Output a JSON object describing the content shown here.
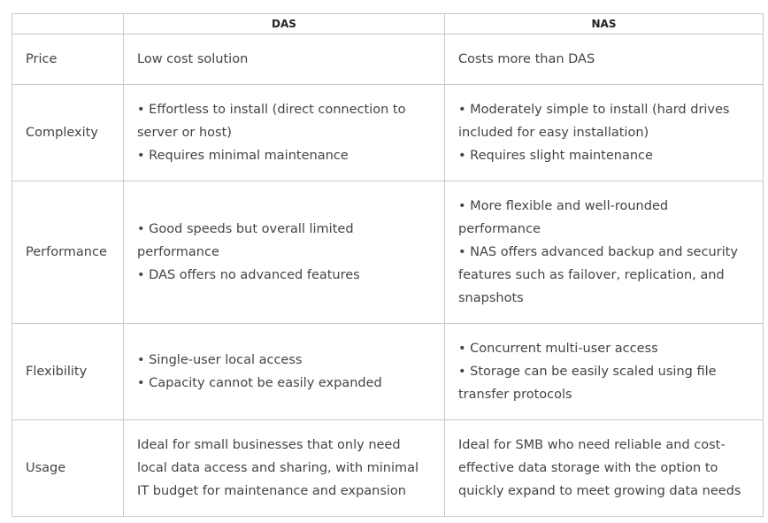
{
  "header": {
    "corner": "",
    "col_das": "DAS",
    "col_nas": "NAS"
  },
  "rows": [
    {
      "label": "Price",
      "das": [
        "Low cost solution"
      ],
      "nas": [
        "Costs more than DAS"
      ]
    },
    {
      "label": "Complexity",
      "das": [
        "• Effortless to install (direct connection to server or host)",
        "• Requires minimal maintenance"
      ],
      "nas": [
        "• Moderately simple to install (hard drives included for easy installation)",
        "• Requires slight maintenance"
      ]
    },
    {
      "label": "Performance",
      "das": [
        "• Good speeds but overall limited performance",
        "• DAS offers no advanced features"
      ],
      "nas": [
        "• More flexible and well-rounded performance",
        "• NAS offers advanced backup and security features such as failover, replication, and snapshots"
      ]
    },
    {
      "label": "Flexibility",
      "das": [
        "• Single-user local access",
        "• Capacity cannot be easily expanded"
      ],
      "nas": [
        "• Concurrent multi-user access",
        "• Storage can be easily scaled using file transfer protocols"
      ]
    },
    {
      "label": "Usage",
      "das": [
        "Ideal for small businesses that only need local data access and sharing, with minimal IT budget for maintenance and expansion"
      ],
      "nas": [
        "Ideal for SMB who need reliable and cost-effective data storage with the option to quickly expand to meet growing data needs"
      ]
    }
  ]
}
